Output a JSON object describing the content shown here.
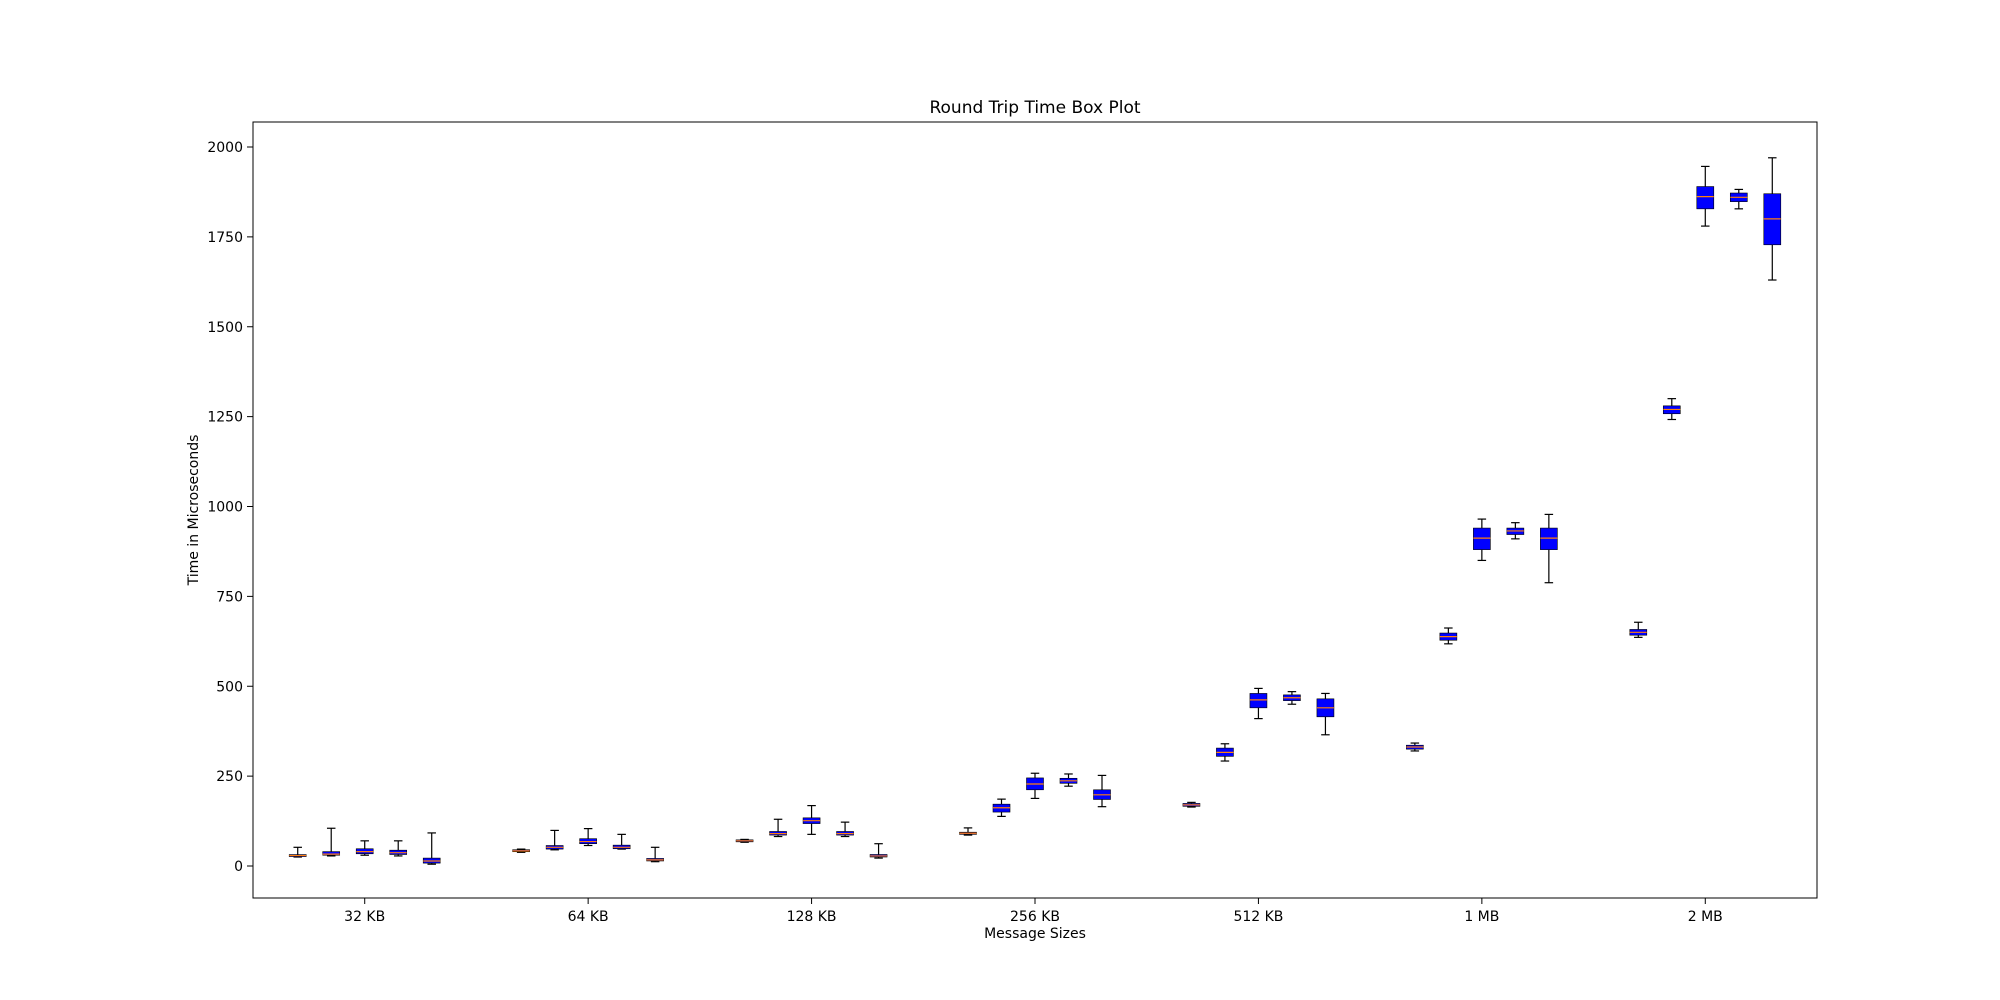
{
  "chart_data": {
    "type": "box",
    "title": "Round Trip Time Box Plot",
    "xlabel": "Message Sizes",
    "ylabel": "Time in Microseconds",
    "ylim": [
      -90,
      2070
    ],
    "yticks": [
      0,
      250,
      500,
      750,
      1000,
      1250,
      1500,
      1750,
      2000
    ],
    "grid": false,
    "box_color": "#0000ff",
    "median_color": "#ff7f0e",
    "whisker_color": "#000000",
    "groups": [
      {
        "label": "32 KB",
        "boxes": [
          {
            "q1": 27,
            "median": 29,
            "q3": 31,
            "low": 25,
            "high": 52
          },
          {
            "q1": 30,
            "median": 33,
            "q3": 40,
            "low": 28,
            "high": 105
          },
          {
            "q1": 34,
            "median": 40,
            "q3": 48,
            "low": 30,
            "high": 70
          },
          {
            "q1": 32,
            "median": 37,
            "q3": 44,
            "low": 28,
            "high": 70
          },
          {
            "q1": 8,
            "median": 14,
            "q3": 22,
            "low": 5,
            "high": 92
          }
        ]
      },
      {
        "label": "64 KB",
        "boxes": [
          {
            "q1": 40,
            "median": 42,
            "q3": 45,
            "low": 38,
            "high": 47
          },
          {
            "q1": 47,
            "median": 52,
            "q3": 57,
            "low": 45,
            "high": 99
          },
          {
            "q1": 62,
            "median": 68,
            "q3": 76,
            "low": 57,
            "high": 104
          },
          {
            "q1": 48,
            "median": 52,
            "q3": 58,
            "low": 47,
            "high": 88
          },
          {
            "q1": 14,
            "median": 17,
            "q3": 21,
            "low": 12,
            "high": 52
          }
        ]
      },
      {
        "label": "128 KB",
        "boxes": [
          {
            "q1": 68,
            "median": 70,
            "q3": 72,
            "low": 66,
            "high": 74
          },
          {
            "q1": 86,
            "median": 90,
            "q3": 96,
            "low": 82,
            "high": 130
          },
          {
            "q1": 118,
            "median": 126,
            "q3": 134,
            "low": 88,
            "high": 168
          },
          {
            "q1": 86,
            "median": 90,
            "q3": 96,
            "low": 82,
            "high": 122
          },
          {
            "q1": 25,
            "median": 28,
            "q3": 32,
            "low": 22,
            "high": 62
          }
        ]
      },
      {
        "label": "256 KB",
        "boxes": [
          {
            "q1": 88,
            "median": 91,
            "q3": 94,
            "low": 86,
            "high": 106
          },
          {
            "q1": 150,
            "median": 162,
            "q3": 172,
            "low": 138,
            "high": 186
          },
          {
            "q1": 212,
            "median": 228,
            "q3": 245,
            "low": 188,
            "high": 258
          },
          {
            "q1": 230,
            "median": 237,
            "q3": 244,
            "low": 222,
            "high": 256
          },
          {
            "q1": 185,
            "median": 198,
            "q3": 212,
            "low": 165,
            "high": 252
          }
        ]
      },
      {
        "label": "512 KB",
        "boxes": [
          {
            "q1": 166,
            "median": 170,
            "q3": 174,
            "low": 164,
            "high": 177
          },
          {
            "q1": 305,
            "median": 316,
            "q3": 328,
            "low": 292,
            "high": 340
          },
          {
            "q1": 440,
            "median": 462,
            "q3": 480,
            "low": 410,
            "high": 494
          },
          {
            "q1": 460,
            "median": 468,
            "q3": 476,
            "low": 450,
            "high": 485
          },
          {
            "q1": 415,
            "median": 440,
            "q3": 465,
            "low": 365,
            "high": 480
          }
        ]
      },
      {
        "label": "1 MB",
        "boxes": [
          {
            "q1": 325,
            "median": 331,
            "q3": 336,
            "low": 320,
            "high": 342
          },
          {
            "q1": 628,
            "median": 638,
            "q3": 648,
            "low": 618,
            "high": 662
          },
          {
            "q1": 880,
            "median": 912,
            "q3": 940,
            "low": 850,
            "high": 965
          },
          {
            "q1": 922,
            "median": 932,
            "q3": 940,
            "low": 910,
            "high": 955
          },
          {
            "q1": 880,
            "median": 912,
            "q3": 940,
            "low": 788,
            "high": 978
          }
        ]
      },
      {
        "label": "2 MB",
        "boxes": [
          {
            "q1": 642,
            "median": 650,
            "q3": 658,
            "low": 636,
            "high": 678
          },
          {
            "q1": 1258,
            "median": 1270,
            "q3": 1280,
            "low": 1242,
            "high": 1300
          },
          {
            "q1": 1828,
            "median": 1862,
            "q3": 1890,
            "low": 1780,
            "high": 1946
          },
          {
            "q1": 1848,
            "median": 1860,
            "q3": 1872,
            "low": 1828,
            "high": 1882
          },
          {
            "q1": 1728,
            "median": 1800,
            "q3": 1870,
            "low": 1630,
            "high": 1970
          }
        ]
      }
    ]
  }
}
